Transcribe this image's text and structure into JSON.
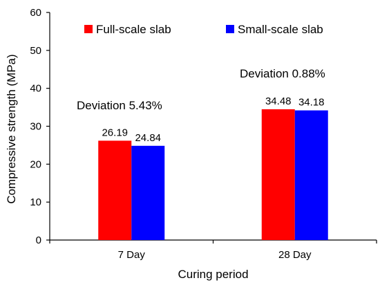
{
  "chart_data": {
    "type": "bar",
    "categories": [
      "7 Day",
      "28 Day"
    ],
    "series": [
      {
        "name": "Full-scale slab",
        "color": "#ff0000",
        "values": [
          26.19,
          34.48
        ]
      },
      {
        "name": "Small-scale slab",
        "color": "#0000ff",
        "values": [
          24.84,
          34.18
        ]
      }
    ],
    "data_labels": [
      [
        "26.19",
        "34.48"
      ],
      [
        "24.84",
        "34.18"
      ]
    ],
    "xlabel": "Curing period",
    "ylabel": "Compressive strength (MPa)",
    "ylim": [
      0,
      60
    ],
    "yticks": [
      "0",
      "10",
      "20",
      "30",
      "40",
      "50",
      "60"
    ],
    "annotations": [
      "Deviation 5.43%",
      "Deviation 0.88%"
    ],
    "legend_position": "top",
    "grid": false
  }
}
